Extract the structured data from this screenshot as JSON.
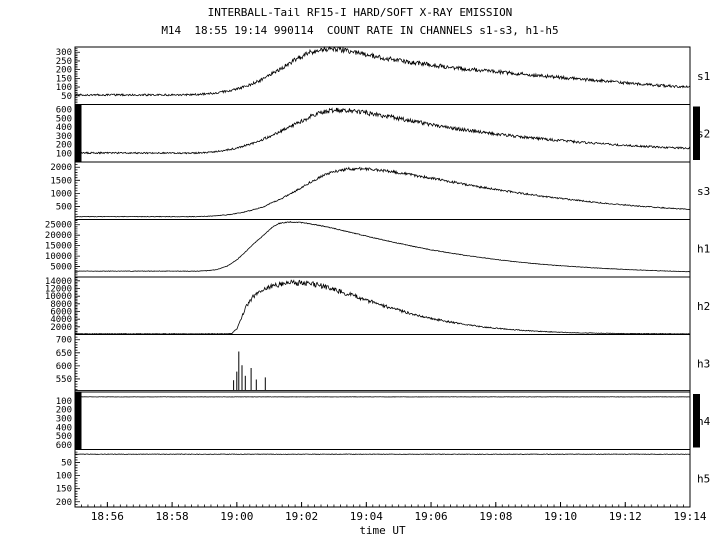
{
  "header": {
    "title": "INTERBALL-Tail RF15-I HARD/SOFT X-RAY EMISSION",
    "subtitle": "M14  18:55 19:14 990114  COUNT RATE IN CHANNELS s1-s3, h1-h5"
  },
  "chart_data": {
    "type": "line",
    "title": "INTERBALL-Tail RF15-I HARD/SOFT X-RAY EMISSION",
    "subtitle": "M14  18:55 19:14 990114  COUNT RATE IN CHANNELS s1-s3, h1-h5",
    "xlabel": "time UT",
    "x_start_time": "18:55",
    "x_end_time": "19:14",
    "x_range_minutes": [
      0,
      19
    ],
    "x_minor_step": 0.2,
    "x_ticks": [
      {
        "t": 1,
        "label": "18:56"
      },
      {
        "t": 3,
        "label": "18:58"
      },
      {
        "t": 5,
        "label": "19:00"
      },
      {
        "t": 7,
        "label": "19:02"
      },
      {
        "t": 9,
        "label": "19:04"
      },
      {
        "t": 11,
        "label": "19:06"
      },
      {
        "t": 13,
        "label": "19:08"
      },
      {
        "t": 15,
        "label": "19:10"
      },
      {
        "t": 17,
        "label": "19:12"
      },
      {
        "t": 19,
        "label": "19:14"
      }
    ],
    "panels": [
      {
        "label": "s1",
        "ymin": 0,
        "ymax": 330,
        "inverted": false,
        "ticks": [
          50,
          100,
          150,
          200,
          250,
          300
        ],
        "noise_abs": 3,
        "noise_rel": 0.04,
        "seed": 1,
        "keypoints": [
          [
            0,
            55
          ],
          [
            3,
            55
          ],
          [
            3.8,
            58
          ],
          [
            4.3,
            65
          ],
          [
            4.8,
            80
          ],
          [
            5.3,
            105
          ],
          [
            5.8,
            145
          ],
          [
            6.3,
            200
          ],
          [
            6.8,
            255
          ],
          [
            7.2,
            295
          ],
          [
            7.6,
            318
          ],
          [
            8,
            322
          ],
          [
            8.4,
            310
          ],
          [
            9,
            285
          ],
          [
            9.5,
            268
          ],
          [
            10,
            252
          ],
          [
            10.5,
            240
          ],
          [
            11,
            228
          ],
          [
            11.5,
            215
          ],
          [
            12,
            205
          ],
          [
            12.5,
            196
          ],
          [
            13,
            188
          ],
          [
            13.5,
            180
          ],
          [
            14,
            172
          ],
          [
            14.5,
            163
          ],
          [
            15,
            155
          ],
          [
            15.5,
            147
          ],
          [
            16,
            140
          ],
          [
            16.5,
            132
          ],
          [
            17,
            124
          ],
          [
            17.5,
            117
          ],
          [
            18,
            110
          ],
          [
            18.5,
            105
          ],
          [
            19,
            100
          ]
        ]
      },
      {
        "label": "s2",
        "ymin": 0,
        "ymax": 660,
        "inverted": false,
        "ticks": [
          100,
          200,
          300,
          400,
          500,
          600
        ],
        "noise_abs": 4,
        "noise_rel": 0.04,
        "seed": 2,
        "sat_left": true,
        "sat_right": true,
        "keypoints": [
          [
            0,
            105
          ],
          [
            3.5,
            102
          ],
          [
            4,
            108
          ],
          [
            4.5,
            125
          ],
          [
            5,
            160
          ],
          [
            5.5,
            215
          ],
          [
            6,
            290
          ],
          [
            6.5,
            380
          ],
          [
            7,
            470
          ],
          [
            7.4,
            540
          ],
          [
            7.8,
            585
          ],
          [
            8.2,
            600
          ],
          [
            8.6,
            585
          ],
          [
            9,
            565
          ],
          [
            9.5,
            535
          ],
          [
            10,
            500
          ],
          [
            10.5,
            465
          ],
          [
            11,
            430
          ],
          [
            11.5,
            400
          ],
          [
            12,
            370
          ],
          [
            12.5,
            345
          ],
          [
            13,
            322
          ],
          [
            13.5,
            300
          ],
          [
            14,
            280
          ],
          [
            14.5,
            262
          ],
          [
            15,
            246
          ],
          [
            15.5,
            230
          ],
          [
            16,
            216
          ],
          [
            16.5,
            203
          ],
          [
            17,
            192
          ],
          [
            17.5,
            182
          ],
          [
            18,
            172
          ],
          [
            18.5,
            164
          ],
          [
            19,
            157
          ]
        ]
      },
      {
        "label": "s3",
        "ymin": 0,
        "ymax": 2200,
        "inverted": false,
        "ticks": [
          500,
          1000,
          1500,
          2000
        ],
        "noise_abs": 8,
        "noise_rel": 0.025,
        "seed": 3,
        "keypoints": [
          [
            0,
            110
          ],
          [
            3.8,
            110
          ],
          [
            4.3,
            135
          ],
          [
            4.8,
            190
          ],
          [
            5.3,
            300
          ],
          [
            5.8,
            480
          ],
          [
            6.3,
            750
          ],
          [
            6.8,
            1080
          ],
          [
            7.2,
            1380
          ],
          [
            7.6,
            1650
          ],
          [
            8,
            1830
          ],
          [
            8.4,
            1930
          ],
          [
            8.8,
            1945
          ],
          [
            9.2,
            1915
          ],
          [
            9.6,
            1860
          ],
          [
            10,
            1790
          ],
          [
            10.5,
            1690
          ],
          [
            11,
            1580
          ],
          [
            11.5,
            1470
          ],
          [
            12,
            1360
          ],
          [
            12.5,
            1250
          ],
          [
            13,
            1150
          ],
          [
            13.5,
            1055
          ],
          [
            14,
            965
          ],
          [
            14.5,
            880
          ],
          [
            15,
            805
          ],
          [
            15.5,
            735
          ],
          [
            16,
            670
          ],
          [
            16.5,
            610
          ],
          [
            17,
            555
          ],
          [
            17.5,
            505
          ],
          [
            18,
            460
          ],
          [
            18.5,
            420
          ],
          [
            19,
            385
          ]
        ]
      },
      {
        "label": "h1",
        "ymin": 0,
        "ymax": 27500,
        "inverted": false,
        "ticks": [
          5000,
          10000,
          15000,
          20000,
          25000
        ],
        "noise_abs": 100,
        "noise_rel": 0.004,
        "seed": 4,
        "keypoints": [
          [
            0,
            2800
          ],
          [
            3.8,
            2800
          ],
          [
            4.1,
            3000
          ],
          [
            4.4,
            3600
          ],
          [
            4.7,
            5200
          ],
          [
            5,
            8200
          ],
          [
            5.3,
            12500
          ],
          [
            5.6,
            17000
          ],
          [
            5.9,
            21000
          ],
          [
            6.1,
            23800
          ],
          [
            6.3,
            25600
          ],
          [
            6.6,
            26300
          ],
          [
            6.9,
            26200
          ],
          [
            7.2,
            25600
          ],
          [
            7.6,
            24500
          ],
          [
            8,
            23200
          ],
          [
            8.5,
            21400
          ],
          [
            9,
            19600
          ],
          [
            9.5,
            17800
          ],
          [
            10,
            16100
          ],
          [
            10.5,
            14500
          ],
          [
            11,
            13000
          ],
          [
            11.5,
            11700
          ],
          [
            12,
            10500
          ],
          [
            12.5,
            9400
          ],
          [
            13,
            8400
          ],
          [
            13.5,
            7500
          ],
          [
            14,
            6700
          ],
          [
            14.5,
            6000
          ],
          [
            15,
            5400
          ],
          [
            15.5,
            4900
          ],
          [
            16,
            4400
          ],
          [
            16.5,
            4000
          ],
          [
            17,
            3600
          ],
          [
            17.5,
            3300
          ],
          [
            18,
            3000
          ],
          [
            18.5,
            2750
          ],
          [
            19,
            2550
          ]
        ]
      },
      {
        "label": "h2",
        "ymin": 0,
        "ymax": 15000,
        "inverted": false,
        "ticks": [
          2000,
          4000,
          6000,
          8000,
          10000,
          12000,
          14000
        ],
        "noise_abs": 60,
        "noise_rel": 0.05,
        "seed": 5,
        "keypoints": [
          [
            0,
            180
          ],
          [
            4.7,
            180
          ],
          [
            4.85,
            300
          ],
          [
            5,
            1500
          ],
          [
            5.15,
            4500
          ],
          [
            5.3,
            7500
          ],
          [
            5.5,
            9800
          ],
          [
            5.7,
            11300
          ],
          [
            6,
            12400
          ],
          [
            6.3,
            13100
          ],
          [
            6.6,
            13600
          ],
          [
            6.9,
            13500
          ],
          [
            7.2,
            13300
          ],
          [
            7.5,
            12900
          ],
          [
            7.8,
            12300
          ],
          [
            8.1,
            11500
          ],
          [
            8.5,
            10400
          ],
          [
            9,
            9000
          ],
          [
            9.5,
            7600
          ],
          [
            10,
            6300
          ],
          [
            10.5,
            5200
          ],
          [
            11,
            4200
          ],
          [
            11.5,
            3400
          ],
          [
            12,
            2700
          ],
          [
            12.5,
            2100
          ],
          [
            13,
            1650
          ],
          [
            13.5,
            1280
          ],
          [
            14,
            980
          ],
          [
            14.5,
            750
          ],
          [
            15,
            580
          ],
          [
            15.5,
            450
          ],
          [
            16,
            360
          ],
          [
            16.5,
            300
          ],
          [
            17,
            255
          ],
          [
            17.5,
            225
          ],
          [
            18,
            205
          ],
          [
            18.5,
            190
          ],
          [
            19,
            180
          ]
        ]
      },
      {
        "label": "h3",
        "ymin": 500,
        "ymax": 720,
        "inverted": false,
        "ticks": [
          550,
          600,
          650,
          700
        ],
        "noise_abs": 0,
        "noise_rel": 0,
        "seed": 6,
        "baseline": 506,
        "spikes": [
          [
            4.9,
            545
          ],
          [
            5.0,
            578
          ],
          [
            5.06,
            655
          ],
          [
            5.16,
            602
          ],
          [
            5.26,
            562
          ],
          [
            5.44,
            592
          ],
          [
            5.6,
            548
          ],
          [
            5.88,
            556
          ]
        ]
      },
      {
        "label": "h4",
        "ymin": 0,
        "ymax": 650,
        "inverted": true,
        "ticks": [
          100,
          200,
          300,
          400,
          500,
          600
        ],
        "noise_abs": 1.5,
        "noise_rel": 0,
        "seed": 7,
        "sat_left": true,
        "sat_right": true,
        "keypoints": [
          [
            0,
            55
          ],
          [
            19,
            55
          ]
        ]
      },
      {
        "label": "h5",
        "ymin": 0,
        "ymax": 220,
        "inverted": true,
        "ticks": [
          50,
          100,
          150,
          200
        ],
        "noise_abs": 1,
        "noise_rel": 0,
        "seed": 8,
        "keypoints": [
          [
            0,
            18
          ],
          [
            19,
            18
          ]
        ]
      }
    ]
  }
}
